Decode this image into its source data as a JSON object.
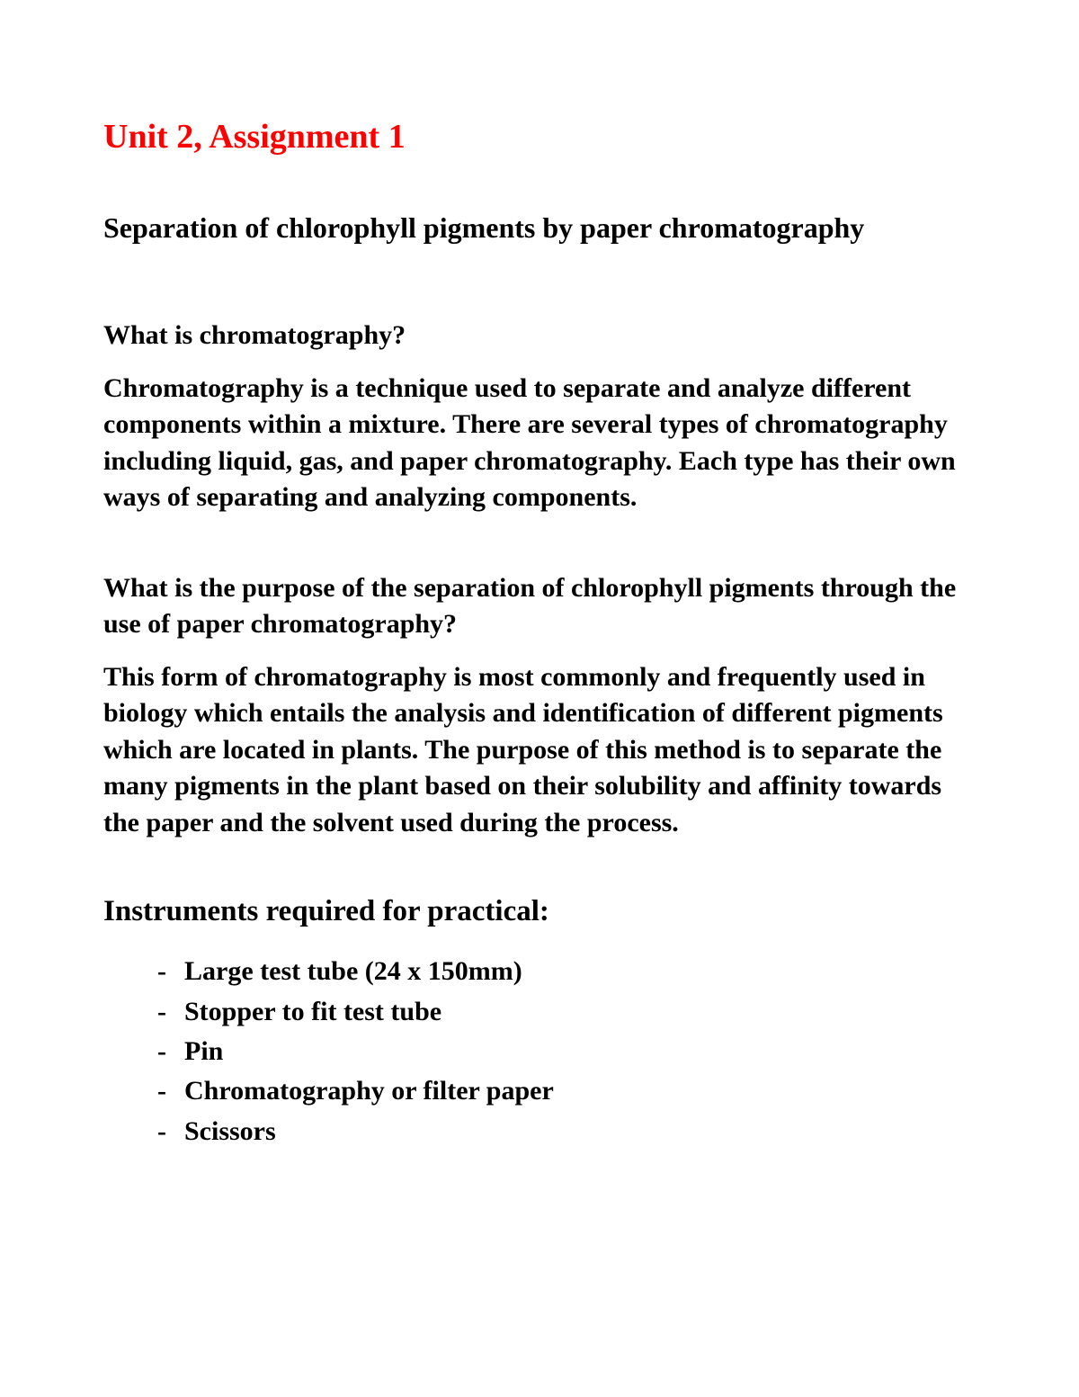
{
  "title": "Unit 2, Assignment 1",
  "subtitle": "Separation of chlorophyll pigments by paper chromatography",
  "colors": {
    "title_color": "#ff0000",
    "text_color": "#000000",
    "background_color": "#ffffff"
  },
  "typography": {
    "font_family": "Times New Roman",
    "title_fontsize": 38,
    "subtitle_fontsize": 32,
    "body_fontsize": 30,
    "section_fontsize": 33,
    "font_weight": "bold"
  },
  "sections": [
    {
      "question": "What is chromatography?",
      "answer": "Chromatography is a technique used to separate and analyze different components within a mixture. There are several types of chromatography including liquid, gas, and paper chromatography. Each type has their own ways of separating and analyzing components."
    },
    {
      "question": "What is the purpose of the separation of chlorophyll pigments through the use of paper chromatography?",
      "answer": "This form of chromatography is most commonly and frequently used in biology which entails the analysis and identification of different pigments which are located in plants. The purpose of this method is to separate the many pigments in the plant based on their solubility and affinity towards the paper and the solvent used during the process."
    }
  ],
  "instruments": {
    "heading": "Instruments required for practical:",
    "items": [
      "Large test tube (24 x 150mm)",
      "Stopper to fit test tube",
      "Pin",
      "Chromatography or filter paper",
      "Scissors"
    ]
  }
}
